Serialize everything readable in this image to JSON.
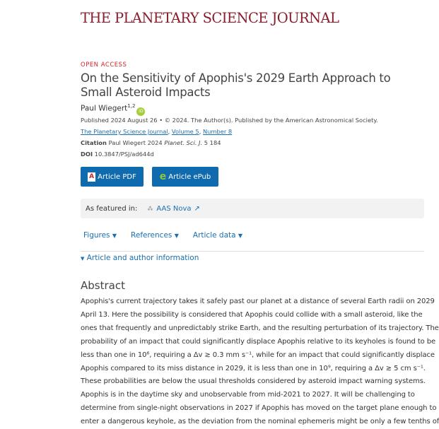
{
  "journal": "THE PLANETARY SCIENCE JOURNAL",
  "open_access": "OPEN ACCESS",
  "title": "On the Sensitivity of Apophis's 2029 Earth Approach to Small Asteroid Impacts",
  "author": {
    "name": "Paul Wiegert",
    "affiliations": "1,2",
    "orcid": "iD"
  },
  "published": "Published 2024 August 26 • © 2024. The Author(s). Published by the American Astronomical Society.",
  "journal_links": [
    "The Planetary Science Journal",
    "Volume 5",
    "Number 8"
  ],
  "citation": {
    "label": "Citation",
    "text": "Paul Wiegert 2024",
    "journal": "Planet. Sci. J.",
    "rest": "5 184"
  },
  "doi": {
    "label": "DOI",
    "value": "10.3847/PSJ/ad644d"
  },
  "buttons": {
    "pdf": "Article PDF",
    "epub": "Article ePub"
  },
  "featured": {
    "label": "As featured in:",
    "link": "AAS Nova"
  },
  "tabs": [
    "Figures",
    "References",
    "Article data"
  ],
  "author_info": "Article and author information",
  "abstract": {
    "heading": "Abstract",
    "lines": [
      "Apophis's current trajectory takes it safely past our planet at a distance of several Earth radii on 2029",
      "April 13. Here the possibility is considered that Apophis could collide with a small asteroid, like the",
      "ones that frequently and unpredictably strike Earth, and the resulting perturbation of its trajectory. The",
      "probability of an impact that could significantly displace Apophis relative to its keyholes is found to be",
      "less than one in 10⁶, requiring a Δv ≳ 0.3 mm s⁻¹, while for an impact that could significantly displace",
      "Apophis compared to its miss distance in 2029, it is less than one in 10⁹, requiring a Δv ≳ 5 cm s⁻¹.",
      "These probabilities are below the usual thresholds considered by asteroid impact warning systems.",
      "Apophis is in the daytime sky and unobservable from mid-2021 to 2027. It will be challenging to",
      "determine from single-night observations in 2027 if Apophis has moved on the target plane enough to",
      "enter a dangerous keyhole, as the deviation from the nominal ephemeris might be only a few tenths of"
    ]
  }
}
